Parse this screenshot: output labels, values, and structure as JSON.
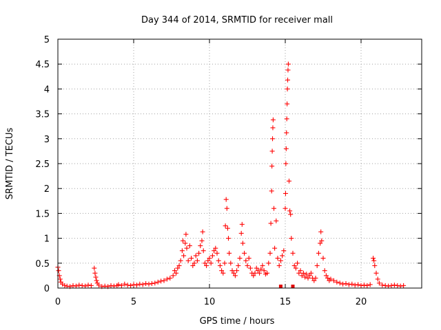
{
  "chart_data": {
    "type": "scatter",
    "title": "Day 344 of 2014, SRMTID for receiver mall",
    "xlabel": "GPS time / hours",
    "ylabel": "SRMTID / TECUs",
    "xlim": [
      0,
      24
    ],
    "ylim": [
      0,
      5
    ],
    "grid": true,
    "marker": "plus",
    "series_color": "#ff0000",
    "x_ticks": [
      {
        "value": 0,
        "label": "0"
      },
      {
        "value": 5,
        "label": "5"
      },
      {
        "value": 10,
        "label": "10"
      },
      {
        "value": 15,
        "label": "15"
      },
      {
        "value": 20,
        "label": "20"
      }
    ],
    "y_ticks": [
      {
        "value": 0,
        "label": "0"
      },
      {
        "value": 0.5,
        "label": "0.5"
      },
      {
        "value": 1,
        "label": "1"
      },
      {
        "value": 1.5,
        "label": "1.5"
      },
      {
        "value": 2,
        "label": "2"
      },
      {
        "value": 2.5,
        "label": "2.5"
      },
      {
        "value": 3,
        "label": "3"
      },
      {
        "value": 3.5,
        "label": "3.5"
      },
      {
        "value": 4,
        "label": "4"
      },
      {
        "value": 4.5,
        "label": "4.5"
      },
      {
        "value": 5,
        "label": "5"
      }
    ],
    "series": [
      {
        "name": "SRMTID",
        "points": [
          [
            0.0,
            0.42
          ],
          [
            0.05,
            0.35
          ],
          [
            0.1,
            0.25
          ],
          [
            0.15,
            0.18
          ],
          [
            0.2,
            0.12
          ],
          [
            0.3,
            0.08
          ],
          [
            0.45,
            0.05
          ],
          [
            0.6,
            0.04
          ],
          [
            0.8,
            0.03
          ],
          [
            1.0,
            0.05
          ],
          [
            1.2,
            0.04
          ],
          [
            1.4,
            0.06
          ],
          [
            1.6,
            0.05
          ],
          [
            1.8,
            0.04
          ],
          [
            2.0,
            0.06
          ],
          [
            2.2,
            0.05
          ],
          [
            2.4,
            0.4
          ],
          [
            2.45,
            0.3
          ],
          [
            2.5,
            0.22
          ],
          [
            2.55,
            0.15
          ],
          [
            2.6,
            0.1
          ],
          [
            2.7,
            0.06
          ],
          [
            2.9,
            0.03
          ],
          [
            3.1,
            0.04
          ],
          [
            3.3,
            0.03
          ],
          [
            3.5,
            0.05
          ],
          [
            3.7,
            0.04
          ],
          [
            3.9,
            0.05
          ],
          [
            4.0,
            0.07
          ],
          [
            4.2,
            0.05
          ],
          [
            4.4,
            0.08
          ],
          [
            4.6,
            0.06
          ],
          [
            4.8,
            0.05
          ],
          [
            5.0,
            0.07
          ],
          [
            5.2,
            0.06
          ],
          [
            5.4,
            0.08
          ],
          [
            5.6,
            0.07
          ],
          [
            5.8,
            0.09
          ],
          [
            6.0,
            0.08
          ],
          [
            6.2,
            0.09
          ],
          [
            6.4,
            0.1
          ],
          [
            6.6,
            0.12
          ],
          [
            6.8,
            0.14
          ],
          [
            7.0,
            0.15
          ],
          [
            7.2,
            0.18
          ],
          [
            7.4,
            0.2
          ],
          [
            7.6,
            0.25
          ],
          [
            7.7,
            0.35
          ],
          [
            7.8,
            0.3
          ],
          [
            7.9,
            0.4
          ],
          [
            8.0,
            0.45
          ],
          [
            8.1,
            0.55
          ],
          [
            8.2,
            0.75
          ],
          [
            8.25,
            0.95
          ],
          [
            8.3,
            0.65
          ],
          [
            8.4,
            0.9
          ],
          [
            8.45,
            1.08
          ],
          [
            8.5,
            0.8
          ],
          [
            8.6,
            0.55
          ],
          [
            8.7,
            0.85
          ],
          [
            8.8,
            0.6
          ],
          [
            8.9,
            0.45
          ],
          [
            9.0,
            0.5
          ],
          [
            9.1,
            0.65
          ],
          [
            9.2,
            0.55
          ],
          [
            9.3,
            0.7
          ],
          [
            9.4,
            0.85
          ],
          [
            9.5,
            0.95
          ],
          [
            9.55,
            1.13
          ],
          [
            9.6,
            0.75
          ],
          [
            9.7,
            0.5
          ],
          [
            9.8,
            0.45
          ],
          [
            9.9,
            0.55
          ],
          [
            10.0,
            0.6
          ],
          [
            10.1,
            0.5
          ],
          [
            10.2,
            0.65
          ],
          [
            10.3,
            0.75
          ],
          [
            10.4,
            0.8
          ],
          [
            10.5,
            0.7
          ],
          [
            10.6,
            0.55
          ],
          [
            10.7,
            0.45
          ],
          [
            10.8,
            0.35
          ],
          [
            10.9,
            0.3
          ],
          [
            11.0,
            0.5
          ],
          [
            11.05,
            1.25
          ],
          [
            11.1,
            1.78
          ],
          [
            11.15,
            1.6
          ],
          [
            11.2,
            1.2
          ],
          [
            11.25,
            1.0
          ],
          [
            11.3,
            0.7
          ],
          [
            11.4,
            0.5
          ],
          [
            11.5,
            0.35
          ],
          [
            11.6,
            0.3
          ],
          [
            11.7,
            0.25
          ],
          [
            11.8,
            0.35
          ],
          [
            11.9,
            0.45
          ],
          [
            12.0,
            0.6
          ],
          [
            12.1,
            1.1
          ],
          [
            12.15,
            1.28
          ],
          [
            12.2,
            0.9
          ],
          [
            12.3,
            0.7
          ],
          [
            12.4,
            0.55
          ],
          [
            12.5,
            0.45
          ],
          [
            12.6,
            0.6
          ],
          [
            12.7,
            0.4
          ],
          [
            12.8,
            0.3
          ],
          [
            12.9,
            0.25
          ],
          [
            13.0,
            0.3
          ],
          [
            13.1,
            0.4
          ],
          [
            13.2,
            0.35
          ],
          [
            13.3,
            0.3
          ],
          [
            13.4,
            0.38
          ],
          [
            13.5,
            0.45
          ],
          [
            13.6,
            0.35
          ],
          [
            13.7,
            0.28
          ],
          [
            13.8,
            0.3
          ],
          [
            13.9,
            0.5
          ],
          [
            14.0,
            0.7
          ],
          [
            14.05,
            1.3
          ],
          [
            14.1,
            1.95
          ],
          [
            14.12,
            2.45
          ],
          [
            14.14,
            2.75
          ],
          [
            14.16,
            3.0
          ],
          [
            14.18,
            3.22
          ],
          [
            14.2,
            3.38
          ],
          [
            14.25,
            1.6
          ],
          [
            14.3,
            0.8
          ],
          [
            14.4,
            1.35
          ],
          [
            14.5,
            0.6
          ],
          [
            14.6,
            0.45
          ],
          [
            14.7,
            0.55
          ],
          [
            14.8,
            0.65
          ],
          [
            14.9,
            0.75
          ],
          [
            15.0,
            1.6
          ],
          [
            15.02,
            1.9
          ],
          [
            15.04,
            2.5
          ],
          [
            15.06,
            2.8
          ],
          [
            15.08,
            3.12
          ],
          [
            15.1,
            3.4
          ],
          [
            15.12,
            3.7
          ],
          [
            15.14,
            4.0
          ],
          [
            15.16,
            4.18
          ],
          [
            15.18,
            4.38
          ],
          [
            15.2,
            4.5
          ],
          [
            15.25,
            2.15
          ],
          [
            15.3,
            1.55
          ],
          [
            15.35,
            1.48
          ],
          [
            15.4,
            1.0
          ],
          [
            15.5,
            0.7
          ],
          [
            15.6,
            0.45
          ],
          [
            15.7,
            0.4
          ],
          [
            15.8,
            0.5
          ],
          [
            15.9,
            0.3
          ],
          [
            16.0,
            0.35
          ],
          [
            16.1,
            0.25
          ],
          [
            16.2,
            0.3
          ],
          [
            16.3,
            0.22
          ],
          [
            16.4,
            0.28
          ],
          [
            16.5,
            0.2
          ],
          [
            16.6,
            0.25
          ],
          [
            16.7,
            0.3
          ],
          [
            16.8,
            0.2
          ],
          [
            16.9,
            0.15
          ],
          [
            17.0,
            0.2
          ],
          [
            17.1,
            0.45
          ],
          [
            17.2,
            0.7
          ],
          [
            17.3,
            0.9
          ],
          [
            17.35,
            1.13
          ],
          [
            17.4,
            0.95
          ],
          [
            17.5,
            0.6
          ],
          [
            17.6,
            0.35
          ],
          [
            17.7,
            0.25
          ],
          [
            17.8,
            0.2
          ],
          [
            17.9,
            0.15
          ],
          [
            18.0,
            0.18
          ],
          [
            18.2,
            0.15
          ],
          [
            18.4,
            0.12
          ],
          [
            18.6,
            0.1
          ],
          [
            18.8,
            0.08
          ],
          [
            19.0,
            0.09
          ],
          [
            19.2,
            0.07
          ],
          [
            19.4,
            0.08
          ],
          [
            19.6,
            0.06
          ],
          [
            19.8,
            0.07
          ],
          [
            20.0,
            0.05
          ],
          [
            20.2,
            0.06
          ],
          [
            20.4,
            0.05
          ],
          [
            20.6,
            0.07
          ],
          [
            20.8,
            0.6
          ],
          [
            20.85,
            0.55
          ],
          [
            20.9,
            0.45
          ],
          [
            21.0,
            0.3
          ],
          [
            21.1,
            0.18
          ],
          [
            21.2,
            0.1
          ],
          [
            21.4,
            0.06
          ],
          [
            21.6,
            0.05
          ],
          [
            21.8,
            0.04
          ],
          [
            22.0,
            0.05
          ],
          [
            22.2,
            0.06
          ],
          [
            22.4,
            0.05
          ],
          [
            22.6,
            0.04
          ],
          [
            22.8,
            0.05
          ]
        ]
      }
    ],
    "zero_flags": [
      14.7,
      15.5
    ]
  }
}
